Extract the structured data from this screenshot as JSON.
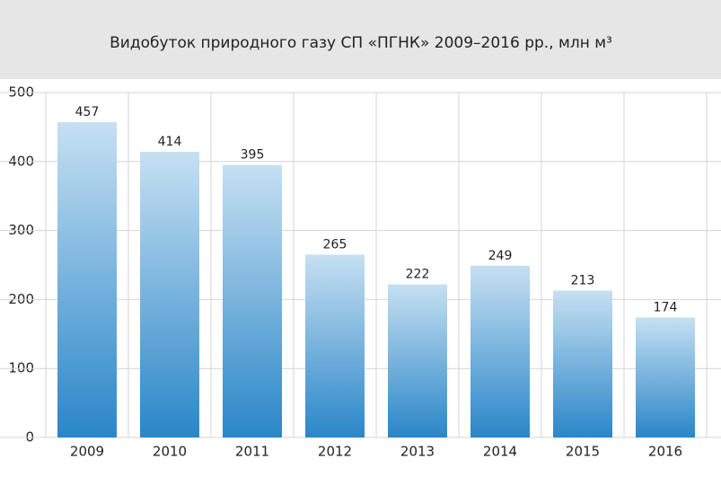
{
  "chart_data": {
    "type": "bar",
    "title": "Видобуток природного газу СП «ПГНК» 2009–2016 рр., млн м³",
    "categories": [
      "2009",
      "2010",
      "2011",
      "2012",
      "2013",
      "2014",
      "2015",
      "2016"
    ],
    "values": [
      457,
      414,
      395,
      265,
      222,
      249,
      213,
      174
    ],
    "color": "#2a86c8",
    "ylim": [
      0,
      500
    ],
    "yticks": [
      0,
      100,
      200,
      300,
      400,
      500
    ],
    "grid": true
  }
}
